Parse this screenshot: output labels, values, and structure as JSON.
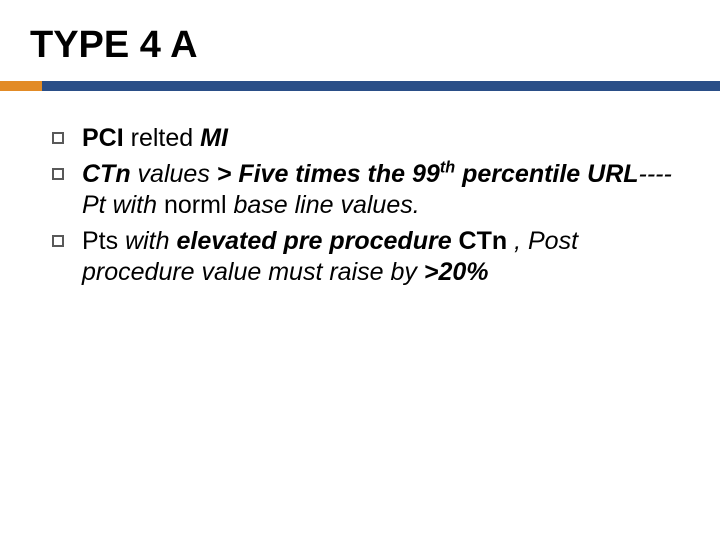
{
  "title": "TYPE 4 A",
  "colors": {
    "rule_main": "#2a4e87",
    "rule_accent": "#e28b26",
    "text": "#000000",
    "bullet_border": "#595959",
    "background": "#ffffff"
  },
  "typography": {
    "title_fontsize": 38,
    "title_weight": 700,
    "body_fontsize": 25,
    "body_lineheight": 1.26
  },
  "bullets": [
    {
      "runs": [
        {
          "t": "PCI ",
          "b": true,
          "i": false
        },
        {
          "t": "relted",
          "b": false,
          "i": false
        },
        {
          "t": " MI",
          "b": true,
          "i": true
        }
      ]
    },
    {
      "runs": [
        {
          "t": "CTn",
          "b": true,
          "i": true
        },
        {
          "t": " values ",
          "b": false,
          "i": true
        },
        {
          "t": "> Five times the 99",
          "b": true,
          "i": true
        },
        {
          "t": "th",
          "b": true,
          "i": true,
          "sup": true
        },
        {
          "t": " percentile URL",
          "b": true,
          "i": true
        },
        {
          "t": "----Pt with ",
          "b": false,
          "i": true
        },
        {
          "t": "norml",
          "b": false,
          "i": false
        },
        {
          "t": " base line values.",
          "b": false,
          "i": true
        }
      ]
    },
    {
      "runs": [
        {
          "t": "Pts",
          "b": false,
          "i": false
        },
        {
          "t": " with ",
          "b": false,
          "i": true
        },
        {
          "t": "elevated pre procedure ",
          "b": true,
          "i": true
        },
        {
          "t": "CTn",
          "b": true,
          "i": false
        },
        {
          "t": " , ",
          "b": false,
          "i": true
        },
        {
          "t": "Post procedure  value must raise by ",
          "b": false,
          "i": true
        },
        {
          "t": ">20%",
          "b": true,
          "i": true
        }
      ]
    }
  ]
}
